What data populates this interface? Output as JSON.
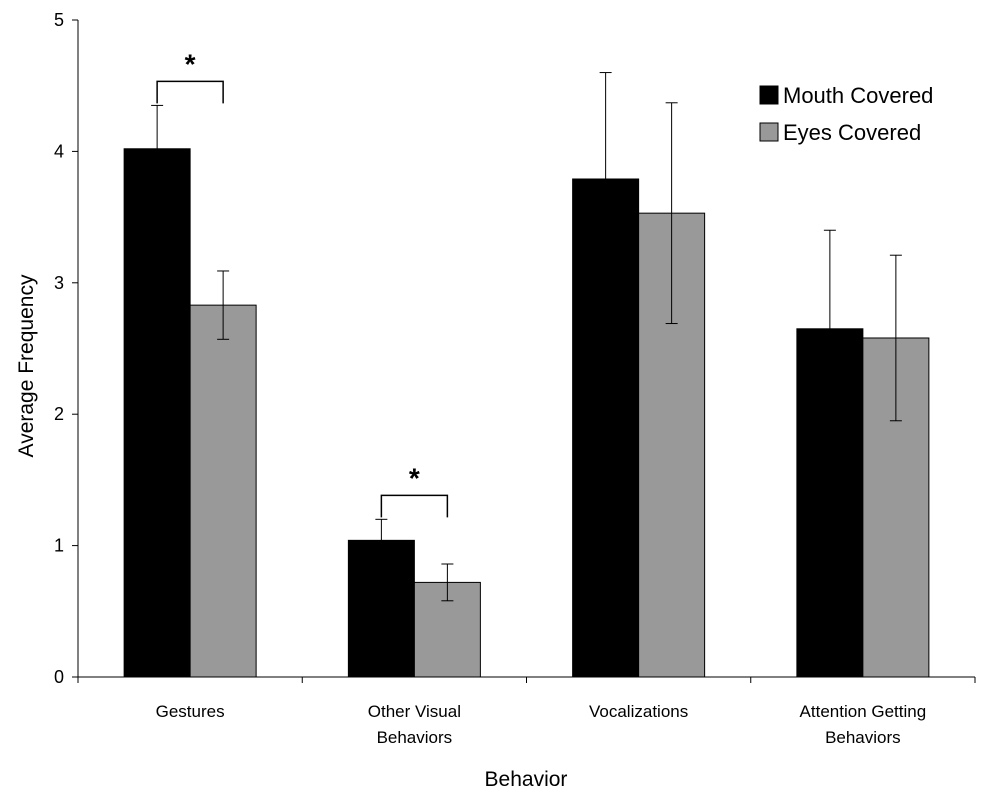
{
  "chart_data": {
    "type": "bar",
    "xlabel": "Behavior",
    "ylabel": "Average Frequency",
    "ylim": [
      0,
      5
    ],
    "yticks": [
      "0",
      "1",
      "2",
      "3",
      "4",
      "5"
    ],
    "categories": [
      [
        "Gestures"
      ],
      [
        "Other Visual",
        "Behaviors"
      ],
      [
        "Vocalizations"
      ],
      [
        "Attention Getting",
        "Behaviors"
      ]
    ],
    "series": [
      {
        "name": "Mouth Covered",
        "color": "#000000",
        "values": [
          4.02,
          1.04,
          3.79,
          2.65
        ],
        "error": [
          0.33,
          0.16,
          0.81,
          0.75
        ]
      },
      {
        "name": "Eyes Covered",
        "color": "#999999",
        "values": [
          2.83,
          0.72,
          3.53,
          2.58
        ],
        "error": [
          0.26,
          0.14,
          0.84,
          0.63
        ]
      }
    ],
    "significance": [
      {
        "category_index": 0,
        "label": "*"
      },
      {
        "category_index": 1,
        "label": "*"
      }
    ],
    "legend_position": "top-right",
    "grid": false
  }
}
